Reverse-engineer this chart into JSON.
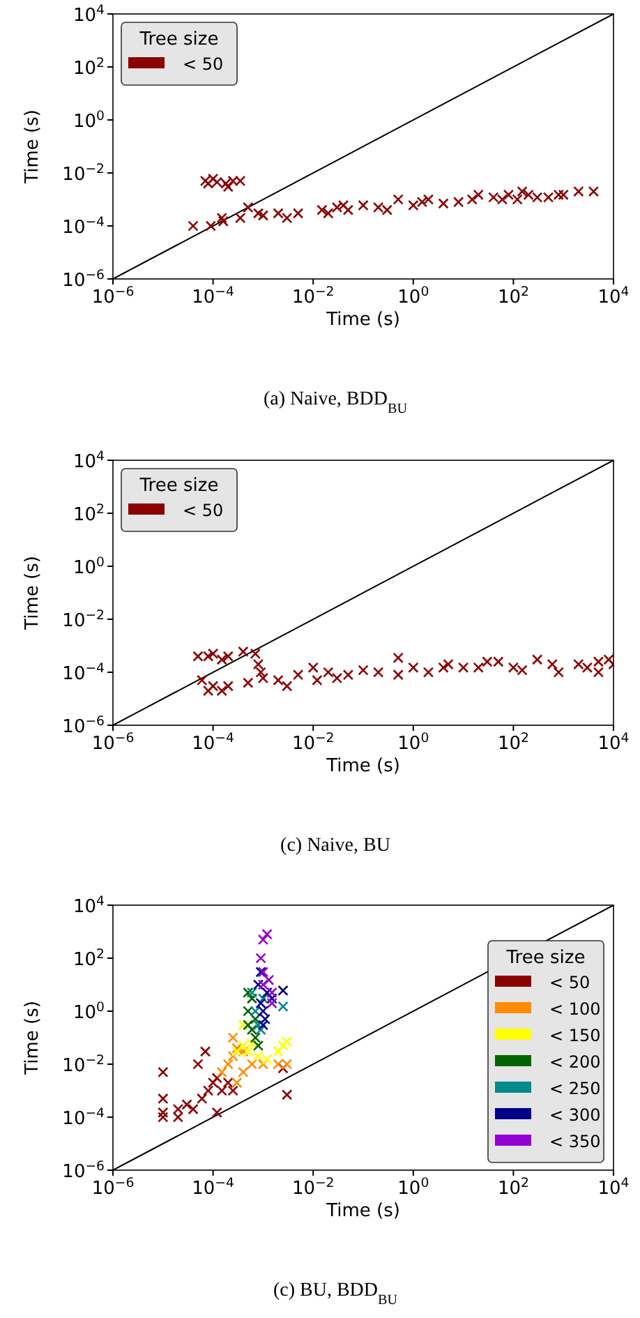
{
  "chart_data": [
    {
      "type": "scatter",
      "xlabel": "Time (s)",
      "ylabel": "Time (s)",
      "log": "xy",
      "marker": "cross",
      "legend": "top left",
      "legend_title": "Tree size",
      "annotations": [
        "(a) Naive, BDD$_{BU}$"
      ],
      "xlim": [
        1e-06,
        10000.0
      ],
      "ylim": [
        1e-06,
        10000.0
      ],
      "xticks": [
        {
          "value": 1e-06,
          "label": "10$^{−6}$"
        },
        {
          "value": 0.0001,
          "label": "10$^{−4}$"
        },
        {
          "value": 0.01,
          "label": "10$^{−2}$"
        },
        {
          "value": 1,
          "label": "10$^{0}$"
        },
        {
          "value": 100,
          "label": "10$^{2}$"
        },
        {
          "value": 10000.0,
          "label": "10$^{4}$"
        }
      ],
      "yticks": [
        {
          "value": 1e-06,
          "label": "10$^{−6}$"
        },
        {
          "value": 0.0001,
          "label": "10$^{−4}$"
        },
        {
          "value": 0.01,
          "label": "10$^{−2}$"
        },
        {
          "value": 1,
          "label": "10$^{0}$"
        },
        {
          "value": 100,
          "label": "10$^{2}$"
        },
        {
          "value": 10000.0,
          "label": "10$^{4}$"
        }
      ],
      "series": [
        {
          "type": "line",
          "marker": "none",
          "color": "#000000",
          "x": [
            1e-06,
            10000.0
          ],
          "values": [
            1e-06,
            10000.0
          ]
        },
        {
          "name": "< 50",
          "color": "#8b0000",
          "x": [
            7e-05,
            8e-05,
            0.0001,
            0.00012,
            0.00018,
            0.0002,
            0.00025,
            0.00035,
            4e-05,
            9e-05,
            0.00015,
            0.00016,
            0.00035,
            0.0005,
            0.0008,
            0.001,
            0.002,
            0.003,
            0.005,
            0.015,
            0.02,
            0.03,
            0.04,
            0.05,
            0.1,
            0.2,
            0.3,
            0.5,
            1,
            1.5,
            2,
            4,
            8,
            15,
            20,
            40,
            60,
            80,
            120,
            150,
            200,
            300,
            500,
            800,
            1000,
            2000,
            4000
          ],
          "values": [
            0.005,
            0.004,
            0.006,
            0.0045,
            0.004,
            0.003,
            0.005,
            0.005,
            0.0001,
            0.0001,
            0.0002,
            0.00015,
            0.0002,
            0.0005,
            0.0003,
            0.00025,
            0.0003,
            0.0002,
            0.0003,
            0.0004,
            0.0003,
            0.0005,
            0.0006,
            0.0004,
            0.0006,
            0.0005,
            0.0004,
            0.001,
            0.0006,
            0.0008,
            0.001,
            0.0007,
            0.0008,
            0.001,
            0.0015,
            0.0012,
            0.001,
            0.0015,
            0.001,
            0.002,
            0.0015,
            0.0012,
            0.0012,
            0.0015,
            0.0015,
            0.002,
            0.002
          ]
        }
      ]
    },
    {
      "type": "scatter",
      "xlabel": "Time (s)",
      "ylabel": "Time (s)",
      "log": "xy",
      "marker": "cross",
      "legend": "top left",
      "legend_title": "Tree size",
      "annotations": [
        "(c) Naive, BU"
      ],
      "xlim": [
        1e-06,
        10000.0
      ],
      "ylim": [
        1e-06,
        10000.0
      ],
      "xticks": [
        {
          "value": 1e-06,
          "label": "10$^{−6}$"
        },
        {
          "value": 0.0001,
          "label": "10$^{−4}$"
        },
        {
          "value": 0.01,
          "label": "10$^{−2}$"
        },
        {
          "value": 1,
          "label": "10$^{0}$"
        },
        {
          "value": 100,
          "label": "10$^{2}$"
        },
        {
          "value": 10000.0,
          "label": "10$^{4}$"
        }
      ],
      "yticks": [
        {
          "value": 1e-06,
          "label": "10$^{−6}$"
        },
        {
          "value": 0.0001,
          "label": "10$^{−4}$"
        },
        {
          "value": 0.01,
          "label": "10$^{−2}$"
        },
        {
          "value": 1,
          "label": "10$^{0}$"
        },
        {
          "value": 100,
          "label": "10$^{2}$"
        },
        {
          "value": 10000.0,
          "label": "10$^{4}$"
        }
      ],
      "series": [
        {
          "type": "line",
          "marker": "none",
          "color": "#000000",
          "x": [
            1e-06,
            10000.0
          ],
          "values": [
            1e-06,
            10000.0
          ]
        },
        {
          "name": "< 50",
          "color": "#8b0000",
          "x": [
            5e-05,
            8e-05,
            0.0001,
            0.00015,
            0.0002,
            6e-05,
            8e-05,
            0.0001,
            0.00015,
            0.0002,
            0.0004,
            0.0007,
            0.0008,
            0.0009,
            0.001,
            0.0005,
            0.002,
            0.003,
            0.005,
            0.01,
            0.012,
            0.02,
            0.03,
            0.05,
            0.1,
            0.2,
            0.5,
            0.5,
            1,
            2,
            4,
            5,
            10,
            20,
            30,
            50,
            100,
            150,
            300,
            600,
            800,
            2000,
            3000,
            5000,
            5000,
            8000,
            10000.0
          ],
          "values": [
            0.0004,
            0.0004,
            0.0005,
            0.0003,
            0.0004,
            5e-05,
            2e-05,
            3e-05,
            2e-05,
            3e-05,
            0.0006,
            0.0005,
            0.0002,
            0.0001,
            6e-05,
            4e-05,
            5e-05,
            3e-05,
            8e-05,
            0.00015,
            5e-05,
            0.0001,
            6e-05,
            8e-05,
            0.00012,
            0.0001,
            0.00035,
            8e-05,
            0.00015,
            0.0001,
            0.00015,
            0.0002,
            0.00015,
            0.00015,
            0.00025,
            0.00025,
            0.00015,
            0.00012,
            0.0003,
            0.0002,
            0.0001,
            0.0002,
            0.00015,
            0.00025,
            0.0001,
            0.0003,
            0.0002
          ]
        }
      ]
    },
    {
      "type": "scatter",
      "xlabel": "Time (s)",
      "ylabel": "Time (s)",
      "log": "xy",
      "marker": "cross",
      "legend": "right",
      "legend_title": "Tree size",
      "annotations": [
        "(c) BU, BDD$_{BU}$"
      ],
      "xlim": [
        1e-06,
        10000.0
      ],
      "ylim": [
        1e-06,
        10000.0
      ],
      "xticks": [
        {
          "value": 1e-06,
          "label": "10$^{−6}$"
        },
        {
          "value": 0.0001,
          "label": "10$^{−4}$"
        },
        {
          "value": 0.01,
          "label": "10$^{−2}$"
        },
        {
          "value": 1,
          "label": "10$^{0}$"
        },
        {
          "value": 100,
          "label": "10$^{2}$"
        },
        {
          "value": 10000.0,
          "label": "10$^{4}$"
        }
      ],
      "yticks": [
        {
          "value": 1e-06,
          "label": "10$^{−6}$"
        },
        {
          "value": 0.0001,
          "label": "10$^{−4}$"
        },
        {
          "value": 0.01,
          "label": "10$^{−2}$"
        },
        {
          "value": 1,
          "label": "10$^{0}$"
        },
        {
          "value": 100,
          "label": "10$^{2}$"
        },
        {
          "value": 10000.0,
          "label": "10$^{4}$"
        }
      ],
      "series": [
        {
          "type": "line",
          "marker": "none",
          "color": "#000000",
          "x": [
            1e-06,
            10000.0
          ],
          "values": [
            1e-06,
            10000.0
          ]
        },
        {
          "name": "< 50",
          "color": "#8b0000",
          "x": [
            1e-05,
            1e-05,
            1e-05,
            1e-05,
            2e-05,
            2e-05,
            3e-05,
            4e-05,
            5e-05,
            6e-05,
            8e-05,
            0.0001,
            0.00012,
            0.00012,
            0.00015,
            0.0002,
            0.00025,
            7e-05,
            0.0025,
            0.003
          ],
          "values": [
            0.0001,
            0.005,
            0.0005,
            0.00015,
            0.0001,
            0.0002,
            0.0003,
            0.0002,
            0.01,
            0.0005,
            0.001,
            0.002,
            0.00015,
            0.003,
            0.001,
            0.002,
            0.001,
            0.03,
            0.007,
            0.0007
          ]
        },
        {
          "name": "< 100",
          "color": "#ff8c00",
          "x": [
            0.00015,
            0.0002,
            0.00025,
            0.0003,
            0.00025,
            0.0004,
            0.0003,
            0.0006,
            0.001,
            0.002,
            0.003,
            0.0004
          ],
          "values": [
            0.005,
            0.01,
            0.02,
            0.04,
            0.1,
            0.005,
            0.002,
            0.01,
            0.01,
            0.01,
            0.01,
            0.03
          ]
        },
        {
          "name": "< 150",
          "color": "#ffff00",
          "x": [
            0.0003,
            0.0004,
            0.0005,
            0.0004,
            0.0006,
            0.0008,
            0.0012,
            0.002,
            0.003,
            0.0025
          ],
          "values": [
            0.03,
            0.05,
            0.03,
            0.3,
            0.06,
            0.02,
            0.015,
            0.03,
            0.07,
            0.05
          ]
        },
        {
          "name": "< 200",
          "color": "#006400",
          "x": [
            0.0005,
            0.0005,
            0.0006,
            0.0007,
            0.0006,
            0.0007,
            0.0008,
            0.0005
          ],
          "values": [
            1,
            0.3,
            0.2,
            0.1,
            3,
            0.5,
            0.05,
            5
          ]
        },
        {
          "name": "< 250",
          "color": "#008b8b",
          "x": [
            0.0006,
            0.0007,
            0.0008,
            0.0009,
            0.0025,
            0.001
          ],
          "values": [
            5,
            1,
            0.3,
            0.2,
            1.5,
            3
          ]
        },
        {
          "name": "< 300",
          "color": "#00008b",
          "x": [
            0.0008,
            0.0009,
            0.001,
            0.0012,
            0.0009,
            0.0011,
            0.0015,
            0.0025,
            0.001
          ],
          "values": [
            10,
            2,
            1,
            5,
            30,
            0.5,
            3,
            6,
            0.3
          ]
        },
        {
          "name": "< 350",
          "color": "#9400d3",
          "x": [
            0.0009,
            0.001,
            0.001,
            0.0012,
            0.001,
            0.0015,
            0.0013,
            0.0015
          ],
          "values": [
            100,
            30,
            500,
            800,
            10,
            5,
            15,
            2
          ]
        }
      ]
    }
  ]
}
